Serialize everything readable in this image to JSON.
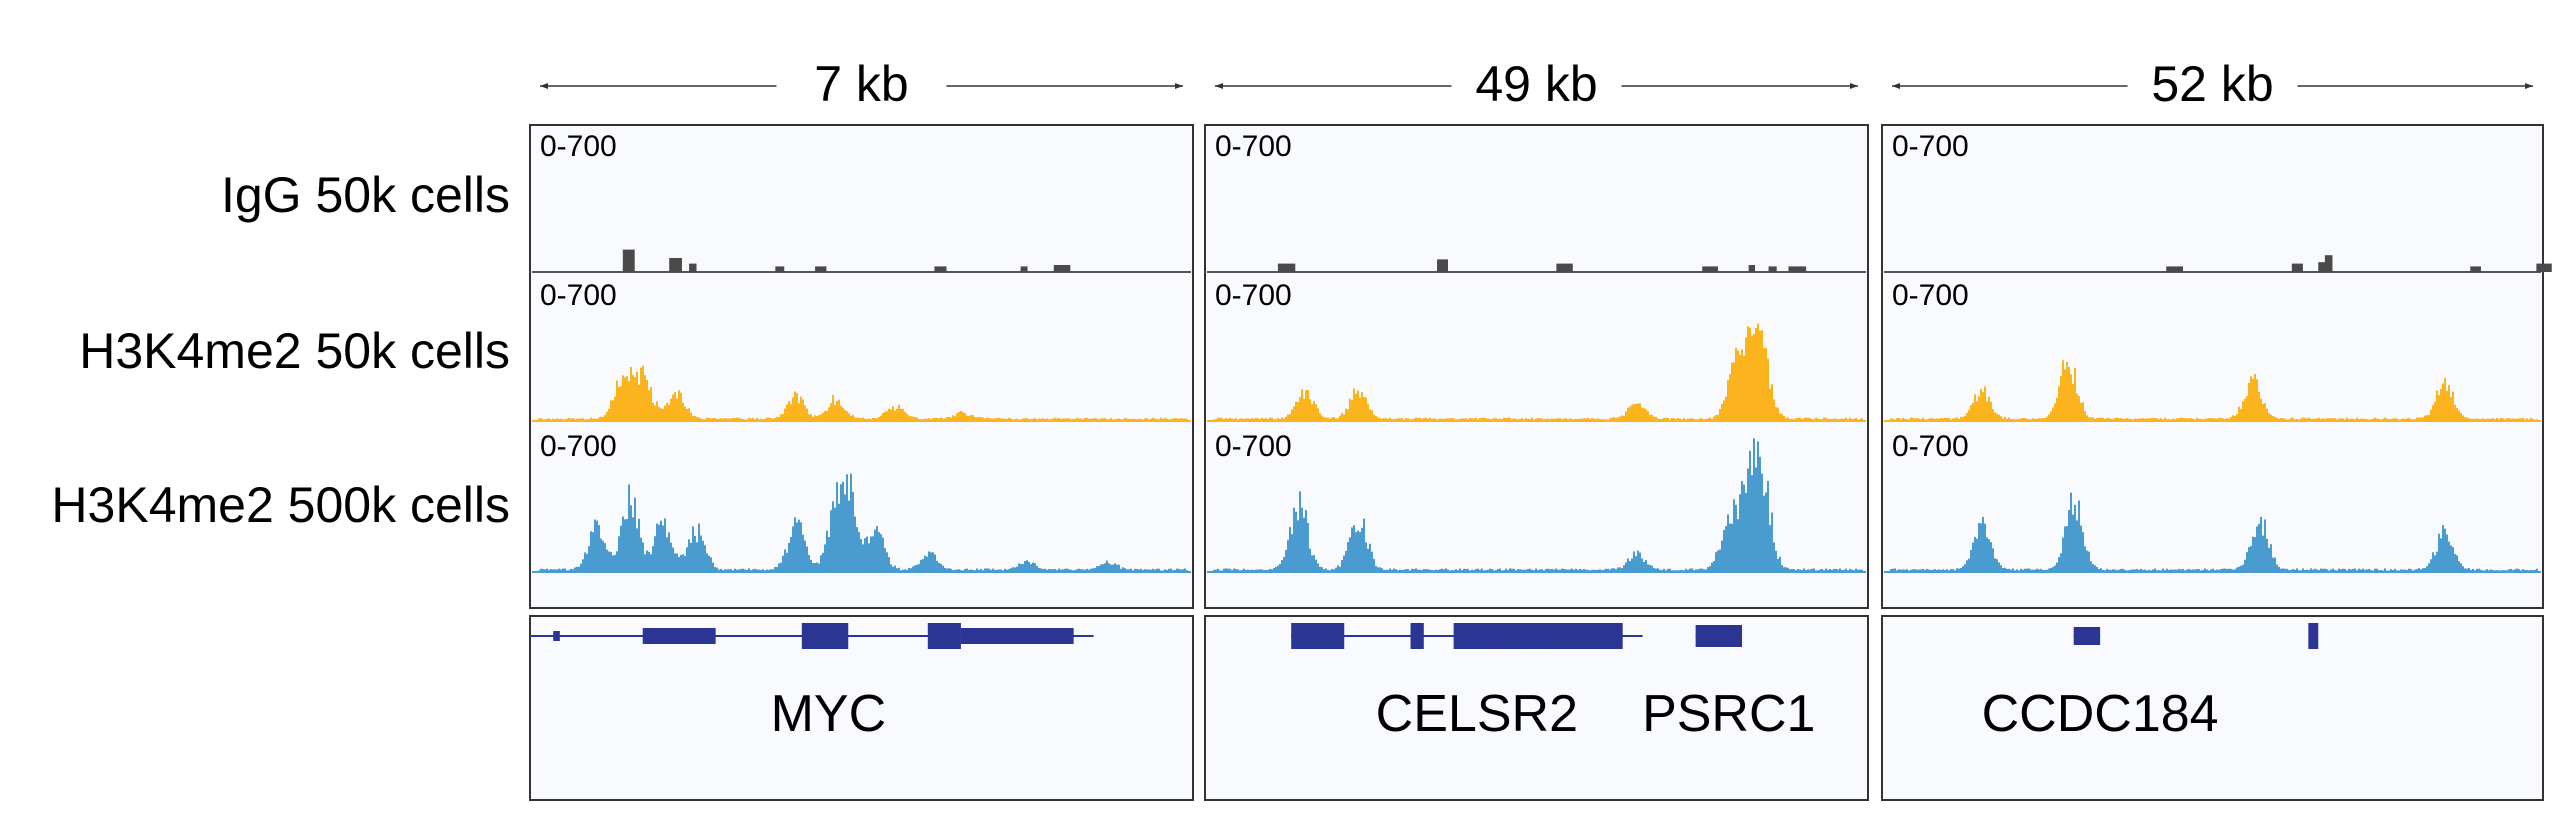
{
  "colors": {
    "igg": "#4a4a4a",
    "h3k4me2_50k": "#fbb41e",
    "h3k4me2_500k": "#4a9bd0",
    "gene": "#2b3594",
    "panel_bg": "#f8fafd",
    "frame": "#333333"
  },
  "tracks": [
    {
      "label": "IgG 50k cells",
      "color_key": "igg"
    },
    {
      "label": "H3K4me2 50k cells",
      "color_key": "h3k4me2_50k"
    },
    {
      "label": "H3K4me2 500k cells",
      "color_key": "h3k4me2_500k"
    }
  ],
  "panels": [
    {
      "scale_label": "7 kb",
      "range_labels": [
        "0-700",
        "0-700",
        "0-700"
      ],
      "genes": [
        "MYC"
      ],
      "signal_peaks": {
        "igg": [
          [
            0.14,
            0.16
          ],
          [
            0.21,
            0.1
          ],
          [
            0.24,
            0.06
          ],
          [
            0.37,
            0.04
          ],
          [
            0.43,
            0.04
          ],
          [
            0.61,
            0.04
          ],
          [
            0.74,
            0.04
          ],
          [
            0.79,
            0.05
          ]
        ],
        "h3k4me2_50k": [
          [
            0.14,
            0.4
          ],
          [
            0.17,
            0.34
          ],
          [
            0.22,
            0.22
          ],
          [
            0.4,
            0.18
          ],
          [
            0.46,
            0.16
          ],
          [
            0.55,
            0.1
          ],
          [
            0.65,
            0.05
          ]
        ],
        "h3k4me2_500k": [
          [
            0.1,
            0.35
          ],
          [
            0.15,
            0.55
          ],
          [
            0.2,
            0.4
          ],
          [
            0.25,
            0.32
          ],
          [
            0.4,
            0.35
          ],
          [
            0.46,
            0.42
          ],
          [
            0.48,
            0.55
          ],
          [
            0.52,
            0.3
          ],
          [
            0.6,
            0.12
          ],
          [
            0.75,
            0.06
          ],
          [
            0.87,
            0.06
          ]
        ]
      }
    },
    {
      "scale_label": "49 kb",
      "range_labels": [
        "0-700",
        "0-700",
        "0-700"
      ],
      "genes": [
        "CELSR2",
        "PSRC1"
      ],
      "signal_peaks": {
        "igg": [
          [
            0.11,
            0.06
          ],
          [
            0.35,
            0.09
          ],
          [
            0.53,
            0.06
          ],
          [
            0.75,
            0.04
          ],
          [
            0.82,
            0.05
          ],
          [
            0.85,
            0.04
          ],
          [
            0.88,
            0.04
          ]
        ],
        "h3k4me2_50k": [
          [
            0.15,
            0.22
          ],
          [
            0.23,
            0.22
          ],
          [
            0.65,
            0.12
          ],
          [
            0.8,
            0.4
          ],
          [
            0.82,
            0.52
          ],
          [
            0.84,
            0.45
          ]
        ],
        "h3k4me2_500k": [
          [
            0.14,
            0.55
          ],
          [
            0.23,
            0.42
          ],
          [
            0.65,
            0.12
          ],
          [
            0.79,
            0.42
          ],
          [
            0.82,
            0.72
          ],
          [
            0.84,
            0.6
          ]
        ]
      }
    },
    {
      "scale_label": "52 kb",
      "range_labels": [
        "0-700",
        "0-700",
        "0-700"
      ],
      "genes": [
        "CCDC184"
      ],
      "signal_peaks": {
        "igg": [
          [
            0.43,
            0.04
          ],
          [
            0.62,
            0.06
          ],
          [
            0.66,
            0.07
          ],
          [
            0.67,
            0.12
          ],
          [
            0.89,
            0.04
          ],
          [
            0.99,
            0.06
          ]
        ],
        "h3k4me2_50k": [
          [
            0.15,
            0.22
          ],
          [
            0.28,
            0.5
          ],
          [
            0.56,
            0.3
          ],
          [
            0.85,
            0.3
          ]
        ],
        "h3k4me2_500k": [
          [
            0.15,
            0.34
          ],
          [
            0.29,
            0.55
          ],
          [
            0.57,
            0.38
          ],
          [
            0.85,
            0.3
          ]
        ]
      }
    }
  ]
}
